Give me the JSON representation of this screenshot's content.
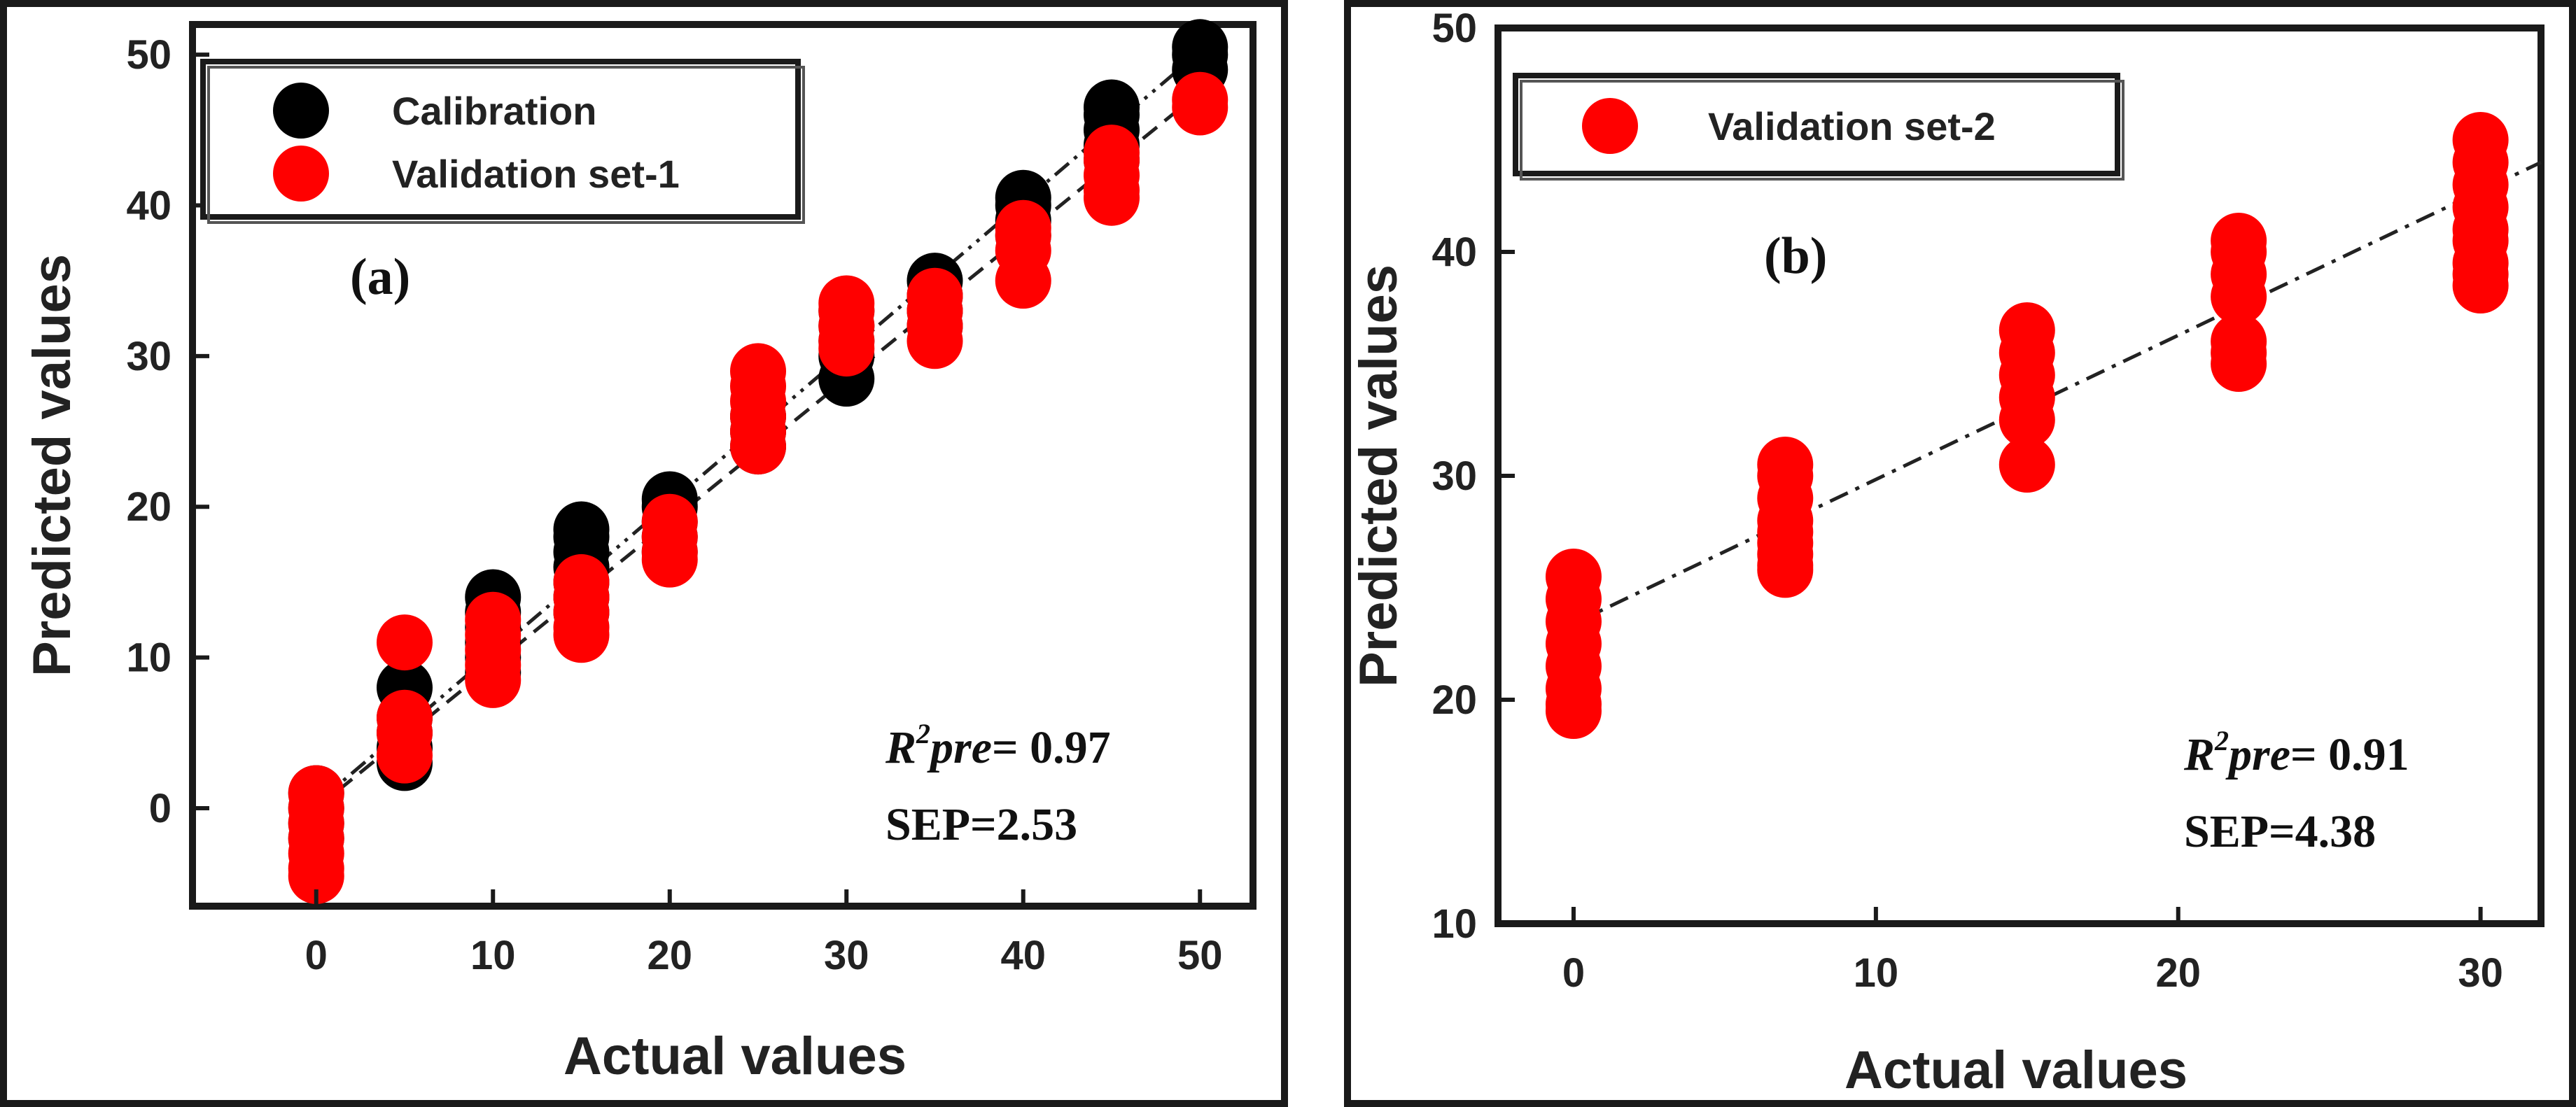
{
  "colors": {
    "calibration": "#000000",
    "validation": "#ff0000",
    "axis": "#1a1a1a"
  },
  "chart_data": [
    {
      "type": "scatter",
      "panel_label": "(a)",
      "xlabel": "Actual values",
      "ylabel": "Predicted values",
      "xlim": [
        -7,
        53
      ],
      "ylim": [
        -6.5,
        52
      ],
      "xticks": [
        0,
        10,
        20,
        30,
        40,
        50
      ],
      "yticks": [
        0,
        10,
        20,
        30,
        40,
        50
      ],
      "legend": {
        "position": "top-left",
        "entries": [
          "Calibration",
          "Validation set-1"
        ]
      },
      "annotation": {
        "r2_label": "R",
        "r2_sup": "2",
        "r2_suffix": "pre",
        "r2_value": "= 0.97",
        "sep": "SEP=2.53"
      },
      "series": [
        {
          "name": "Calibration",
          "color": "#000000",
          "x": [
            0,
            0,
            0,
            0,
            5,
            5,
            5,
            5,
            5,
            10,
            10,
            10,
            10,
            10,
            10,
            15,
            15,
            15,
            15,
            15,
            15,
            15,
            20,
            20,
            20,
            20,
            20,
            25,
            25,
            25,
            30,
            30,
            30,
            30,
            30,
            35,
            35,
            35,
            35,
            40,
            40,
            40,
            40,
            45,
            45,
            45,
            45,
            45,
            50,
            50,
            50
          ],
          "y": [
            1,
            0,
            -1,
            -2,
            8,
            6,
            5,
            4,
            3,
            14,
            13,
            12,
            11,
            10,
            9,
            18.5,
            18,
            17,
            16,
            15,
            14,
            13,
            20.5,
            20,
            19,
            18,
            17,
            26,
            25,
            24,
            33,
            32,
            31,
            30,
            28.5,
            35,
            34,
            33,
            32,
            40.5,
            40,
            39,
            38,
            46.5,
            46,
            45,
            44,
            43,
            50.5,
            50,
            49
          ]
        },
        {
          "name": "Validation set-1",
          "color": "#ff0000",
          "x": [
            0,
            0,
            0,
            0,
            0,
            0,
            0,
            5,
            5,
            5,
            5,
            10,
            10,
            10,
            10,
            10,
            15,
            15,
            15,
            15,
            15,
            20,
            20,
            20,
            20,
            25,
            25,
            25,
            25,
            25,
            25,
            30,
            30,
            30,
            30,
            30,
            35,
            35,
            35,
            35,
            40,
            40,
            40,
            40,
            45,
            45,
            45,
            45,
            45,
            50,
            50
          ],
          "y": [
            1,
            0,
            -1,
            -2,
            -3,
            -4,
            -4.5,
            11,
            6,
            5,
            3.5,
            12.5,
            11.5,
            10.5,
            9.5,
            8.5,
            15,
            14,
            13,
            12,
            11.5,
            19,
            18,
            17,
            16.5,
            29,
            28,
            27,
            26,
            25,
            24,
            33.5,
            33,
            32,
            31,
            30.5,
            34,
            33,
            32,
            31,
            38.5,
            38,
            37,
            35,
            43.5,
            43,
            42,
            41,
            40.5,
            47,
            46.5
          ]
        }
      ],
      "fit_lines": [
        {
          "x": [
            0,
            50
          ],
          "y": [
            0.3,
            50.2
          ],
          "style": "dash-dot-dot"
        },
        {
          "x": [
            0,
            50
          ],
          "y": [
            0,
            47.5
          ],
          "style": "dash"
        }
      ]
    },
    {
      "type": "scatter",
      "panel_label": "(b)",
      "xlabel": "Actual values",
      "ylabel": "Predicted values",
      "xlim": [
        -2.5,
        32
      ],
      "ylim": [
        10,
        50
      ],
      "xticks": [
        0,
        10,
        20,
        30
      ],
      "yticks": [
        10,
        20,
        30,
        40,
        50
      ],
      "legend": {
        "position": "top-left",
        "entries": [
          "Validation set-2"
        ]
      },
      "annotation": {
        "r2_label": "R",
        "r2_sup": "2",
        "r2_suffix": "pre",
        "r2_value": "= 0.91",
        "sep": "SEP=4.38"
      },
      "series": [
        {
          "name": "Validation set-2",
          "color": "#ff0000",
          "x": [
            0,
            0,
            0,
            0,
            0,
            0,
            0,
            0,
            7,
            7,
            7,
            7,
            7,
            7,
            7,
            7,
            7,
            15,
            15,
            15,
            15,
            15,
            15,
            22,
            22,
            22,
            22,
            22,
            22,
            22,
            30,
            30,
            30,
            30,
            30,
            30,
            30,
            30,
            30
          ],
          "y": [
            25.5,
            24.5,
            23.5,
            22.5,
            21.5,
            20.5,
            19.8,
            19.5,
            30.5,
            30,
            29,
            28,
            27.5,
            27,
            26.5,
            26,
            25.8,
            36.5,
            35.5,
            34.5,
            33.5,
            32.5,
            30.5,
            40.5,
            40,
            39,
            38,
            36,
            35.5,
            35,
            45,
            44,
            43,
            42,
            41,
            40.5,
            39.5,
            39,
            38.5
          ]
        }
      ],
      "fit_lines": [
        {
          "x": [
            0,
            32
          ],
          "y": [
            23.4,
            44.0
          ],
          "style": "dash-dot"
        }
      ]
    }
  ]
}
